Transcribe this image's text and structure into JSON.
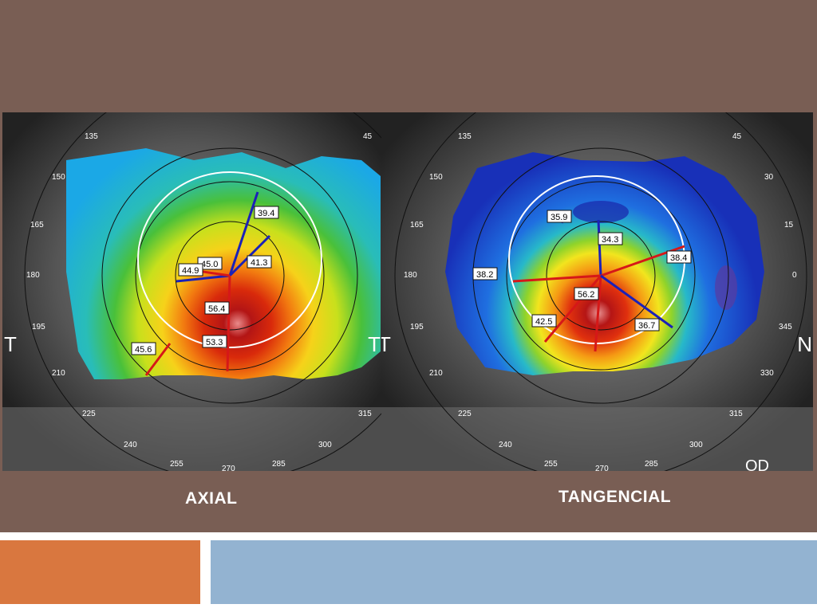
{
  "slide": {
    "background_color": "#795e54",
    "footer_left_color": "#d9773f",
    "footer_right_color": "#93b3d1"
  },
  "axial": {
    "caption": "AXIAL",
    "degree_labels": [
      "135",
      "45",
      "150",
      "165",
      "180",
      "195",
      "210",
      "225",
      "240",
      "255",
      "270",
      "285",
      "300",
      "315"
    ],
    "side_label_left": "T",
    "side_label_right": "T",
    "readings": [
      "39.4",
      "45.0",
      "44.9",
      "41.3",
      "56.4",
      "53.3",
      "45.6"
    ]
  },
  "tangencial": {
    "caption": "TANGENCIAL",
    "degree_labels": [
      "135",
      "45",
      "150",
      "30",
      "165",
      "15",
      "180",
      "0",
      "195",
      "345",
      "210",
      "330",
      "225",
      "315",
      "240",
      "300",
      "255",
      "270",
      "285"
    ],
    "side_label_left": "T",
    "side_label_right": "N",
    "readings": [
      "35.9",
      "34.3",
      "38.2",
      "38.4",
      "56.2",
      "42.5",
      "36.7"
    ],
    "corner_label": "OD"
  }
}
